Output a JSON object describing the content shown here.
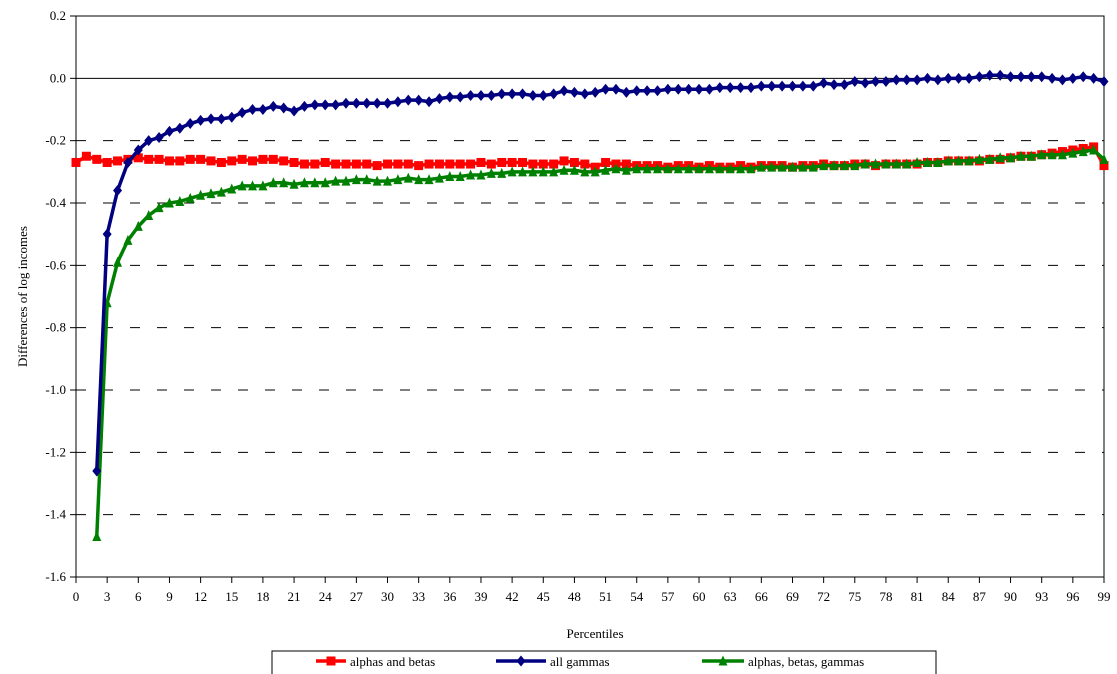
{
  "chart_data": {
    "type": "line",
    "title": "",
    "xlabel": "Percentiles",
    "ylabel": "Differences of log incomes",
    "xlim": [
      0,
      99
    ],
    "ylim": [
      -1.6,
      0.2
    ],
    "y_ticks": [
      "0.2",
      "0.0",
      "-0.2",
      "-0.4",
      "-0.6",
      "-0.8",
      "-1.0",
      "-1.2",
      "-1.4",
      "-1.6"
    ],
    "x_ticks": [
      "0",
      "3",
      "6",
      "9",
      "12",
      "15",
      "18",
      "21",
      "24",
      "27",
      "30",
      "33",
      "36",
      "39",
      "42",
      "45",
      "48",
      "51",
      "54",
      "57",
      "60",
      "63",
      "66",
      "69",
      "72",
      "75",
      "78",
      "81",
      "84",
      "87",
      "90",
      "93",
      "96",
      "99"
    ],
    "grid": "horizontal dashed",
    "legend_position": "bottom",
    "series": [
      {
        "name": "alphas and betas",
        "color": "#ff0000",
        "marker": "square",
        "points": [
          [
            0,
            -0.27
          ],
          [
            1,
            -0.25
          ],
          [
            2,
            -0.26
          ],
          [
            3,
            -0.27
          ],
          [
            4,
            -0.265
          ],
          [
            5,
            -0.26
          ],
          [
            6,
            -0.255
          ],
          [
            7,
            -0.26
          ],
          [
            8,
            -0.26
          ],
          [
            9,
            -0.265
          ],
          [
            10,
            -0.265
          ],
          [
            11,
            -0.26
          ],
          [
            12,
            -0.26
          ],
          [
            13,
            -0.265
          ],
          [
            14,
            -0.27
          ],
          [
            15,
            -0.265
          ],
          [
            16,
            -0.26
          ],
          [
            17,
            -0.265
          ],
          [
            18,
            -0.26
          ],
          [
            19,
            -0.26
          ],
          [
            20,
            -0.265
          ],
          [
            21,
            -0.27
          ],
          [
            22,
            -0.275
          ],
          [
            23,
            -0.275
          ],
          [
            24,
            -0.27
          ],
          [
            25,
            -0.275
          ],
          [
            26,
            -0.275
          ],
          [
            27,
            -0.275
          ],
          [
            28,
            -0.275
          ],
          [
            29,
            -0.28
          ],
          [
            30,
            -0.275
          ],
          [
            31,
            -0.275
          ],
          [
            32,
            -0.275
          ],
          [
            33,
            -0.28
          ],
          [
            34,
            -0.275
          ],
          [
            35,
            -0.275
          ],
          [
            36,
            -0.275
          ],
          [
            37,
            -0.275
          ],
          [
            38,
            -0.275
          ],
          [
            39,
            -0.27
          ],
          [
            40,
            -0.275
          ],
          [
            41,
            -0.27
          ],
          [
            42,
            -0.27
          ],
          [
            43,
            -0.27
          ],
          [
            44,
            -0.275
          ],
          [
            45,
            -0.275
          ],
          [
            46,
            -0.275
          ],
          [
            47,
            -0.265
          ],
          [
            48,
            -0.27
          ],
          [
            49,
            -0.275
          ],
          [
            50,
            -0.285
          ],
          [
            51,
            -0.27
          ],
          [
            52,
            -0.275
          ],
          [
            53,
            -0.275
          ],
          [
            54,
            -0.28
          ],
          [
            55,
            -0.28
          ],
          [
            56,
            -0.28
          ],
          [
            57,
            -0.285
          ],
          [
            58,
            -0.28
          ],
          [
            59,
            -0.28
          ],
          [
            60,
            -0.285
          ],
          [
            61,
            -0.28
          ],
          [
            62,
            -0.285
          ],
          [
            63,
            -0.285
          ],
          [
            64,
            -0.28
          ],
          [
            65,
            -0.285
          ],
          [
            66,
            -0.28
          ],
          [
            67,
            -0.28
          ],
          [
            68,
            -0.28
          ],
          [
            69,
            -0.285
          ],
          [
            70,
            -0.28
          ],
          [
            71,
            -0.28
          ],
          [
            72,
            -0.275
          ],
          [
            73,
            -0.28
          ],
          [
            74,
            -0.28
          ],
          [
            75,
            -0.275
          ],
          [
            76,
            -0.275
          ],
          [
            77,
            -0.28
          ],
          [
            78,
            -0.275
          ],
          [
            79,
            -0.275
          ],
          [
            80,
            -0.275
          ],
          [
            81,
            -0.275
          ],
          [
            82,
            -0.27
          ],
          [
            83,
            -0.27
          ],
          [
            84,
            -0.265
          ],
          [
            85,
            -0.265
          ],
          [
            86,
            -0.265
          ],
          [
            87,
            -0.265
          ],
          [
            88,
            -0.26
          ],
          [
            89,
            -0.26
          ],
          [
            90,
            -0.255
          ],
          [
            91,
            -0.25
          ],
          [
            92,
            -0.25
          ],
          [
            93,
            -0.245
          ],
          [
            94,
            -0.24
          ],
          [
            95,
            -0.235
          ],
          [
            96,
            -0.23
          ],
          [
            97,
            -0.225
          ],
          [
            98,
            -0.22
          ],
          [
            99,
            -0.28
          ]
        ]
      },
      {
        "name": "all gammas",
        "color": "#000080",
        "marker": "diamond",
        "points": [
          [
            2,
            -1.26
          ],
          [
            3,
            -0.5
          ],
          [
            4,
            -0.36
          ],
          [
            5,
            -0.27
          ],
          [
            6,
            -0.23
          ],
          [
            7,
            -0.2
          ],
          [
            8,
            -0.19
          ],
          [
            9,
            -0.17
          ],
          [
            10,
            -0.16
          ],
          [
            11,
            -0.145
          ],
          [
            12,
            -0.135
          ],
          [
            13,
            -0.13
          ],
          [
            14,
            -0.13
          ],
          [
            15,
            -0.125
          ],
          [
            16,
            -0.11
          ],
          [
            17,
            -0.1
          ],
          [
            18,
            -0.1
          ],
          [
            19,
            -0.09
          ],
          [
            20,
            -0.095
          ],
          [
            21,
            -0.105
          ],
          [
            22,
            -0.09
          ],
          [
            23,
            -0.085
          ],
          [
            24,
            -0.085
          ],
          [
            25,
            -0.085
          ],
          [
            26,
            -0.08
          ],
          [
            27,
            -0.08
          ],
          [
            28,
            -0.08
          ],
          [
            29,
            -0.08
          ],
          [
            30,
            -0.08
          ],
          [
            31,
            -0.075
          ],
          [
            32,
            -0.07
          ],
          [
            33,
            -0.07
          ],
          [
            34,
            -0.075
          ],
          [
            35,
            -0.065
          ],
          [
            36,
            -0.06
          ],
          [
            37,
            -0.06
          ],
          [
            38,
            -0.055
          ],
          [
            39,
            -0.055
          ],
          [
            40,
            -0.055
          ],
          [
            41,
            -0.05
          ],
          [
            42,
            -0.05
          ],
          [
            43,
            -0.05
          ],
          [
            44,
            -0.055
          ],
          [
            45,
            -0.055
          ],
          [
            46,
            -0.05
          ],
          [
            47,
            -0.04
          ],
          [
            48,
            -0.045
          ],
          [
            49,
            -0.05
          ],
          [
            50,
            -0.045
          ],
          [
            51,
            -0.035
          ],
          [
            52,
            -0.035
          ],
          [
            53,
            -0.045
          ],
          [
            54,
            -0.04
          ],
          [
            55,
            -0.04
          ],
          [
            56,
            -0.04
          ],
          [
            57,
            -0.035
          ],
          [
            58,
            -0.035
          ],
          [
            59,
            -0.035
          ],
          [
            60,
            -0.035
          ],
          [
            61,
            -0.035
          ],
          [
            62,
            -0.03
          ],
          [
            63,
            -0.03
          ],
          [
            64,
            -0.03
          ],
          [
            65,
            -0.03
          ],
          [
            66,
            -0.025
          ],
          [
            67,
            -0.025
          ],
          [
            68,
            -0.025
          ],
          [
            69,
            -0.025
          ],
          [
            70,
            -0.025
          ],
          [
            71,
            -0.025
          ],
          [
            72,
            -0.015
          ],
          [
            73,
            -0.02
          ],
          [
            74,
            -0.02
          ],
          [
            75,
            -0.01
          ],
          [
            76,
            -0.015
          ],
          [
            77,
            -0.01
          ],
          [
            78,
            -0.01
          ],
          [
            79,
            -0.005
          ],
          [
            80,
            -0.005
          ],
          [
            81,
            -0.005
          ],
          [
            82,
            0
          ],
          [
            83,
            -0.005
          ],
          [
            84,
            0
          ],
          [
            85,
            0
          ],
          [
            86,
            0
          ],
          [
            87,
            0.005
          ],
          [
            88,
            0.01
          ],
          [
            89,
            0.01
          ],
          [
            90,
            0.005
          ],
          [
            91,
            0.005
          ],
          [
            92,
            0.005
          ],
          [
            93,
            0.005
          ],
          [
            94,
            0
          ],
          [
            95,
            -0.005
          ],
          [
            96,
            0
          ],
          [
            97,
            0.005
          ],
          [
            98,
            0
          ],
          [
            99,
            -0.01
          ]
        ]
      },
      {
        "name": "alphas, betas, gammas",
        "color": "#008000",
        "marker": "triangle",
        "points": [
          [
            2,
            -1.47
          ],
          [
            3,
            -0.72
          ],
          [
            4,
            -0.59
          ],
          [
            5,
            -0.52
          ],
          [
            6,
            -0.475
          ],
          [
            7,
            -0.44
          ],
          [
            8,
            -0.415
          ],
          [
            9,
            -0.4
          ],
          [
            10,
            -0.395
          ],
          [
            11,
            -0.385
          ],
          [
            12,
            -0.375
          ],
          [
            13,
            -0.37
          ],
          [
            14,
            -0.365
          ],
          [
            15,
            -0.355
          ],
          [
            16,
            -0.345
          ],
          [
            17,
            -0.345
          ],
          [
            18,
            -0.345
          ],
          [
            19,
            -0.335
          ],
          [
            20,
            -0.335
          ],
          [
            21,
            -0.34
          ],
          [
            22,
            -0.335
          ],
          [
            23,
            -0.335
          ],
          [
            24,
            -0.335
          ],
          [
            25,
            -0.33
          ],
          [
            26,
            -0.33
          ],
          [
            27,
            -0.325
          ],
          [
            28,
            -0.325
          ],
          [
            29,
            -0.33
          ],
          [
            30,
            -0.33
          ],
          [
            31,
            -0.325
          ],
          [
            32,
            -0.32
          ],
          [
            33,
            -0.325
          ],
          [
            34,
            -0.325
          ],
          [
            35,
            -0.32
          ],
          [
            36,
            -0.315
          ],
          [
            37,
            -0.315
          ],
          [
            38,
            -0.31
          ],
          [
            39,
            -0.31
          ],
          [
            40,
            -0.305
          ],
          [
            41,
            -0.305
          ],
          [
            42,
            -0.3
          ],
          [
            43,
            -0.3
          ],
          [
            44,
            -0.3
          ],
          [
            45,
            -0.3
          ],
          [
            46,
            -0.3
          ],
          [
            47,
            -0.295
          ],
          [
            48,
            -0.295
          ],
          [
            49,
            -0.3
          ],
          [
            50,
            -0.3
          ],
          [
            51,
            -0.295
          ],
          [
            52,
            -0.29
          ],
          [
            53,
            -0.295
          ],
          [
            54,
            -0.29
          ],
          [
            55,
            -0.29
          ],
          [
            56,
            -0.29
          ],
          [
            57,
            -0.29
          ],
          [
            58,
            -0.29
          ],
          [
            59,
            -0.29
          ],
          [
            60,
            -0.29
          ],
          [
            61,
            -0.29
          ],
          [
            62,
            -0.29
          ],
          [
            63,
            -0.29
          ],
          [
            64,
            -0.29
          ],
          [
            65,
            -0.29
          ],
          [
            66,
            -0.285
          ],
          [
            67,
            -0.285
          ],
          [
            68,
            -0.285
          ],
          [
            69,
            -0.285
          ],
          [
            70,
            -0.285
          ],
          [
            71,
            -0.285
          ],
          [
            72,
            -0.28
          ],
          [
            73,
            -0.28
          ],
          [
            74,
            -0.28
          ],
          [
            75,
            -0.28
          ],
          [
            76,
            -0.275
          ],
          [
            77,
            -0.275
          ],
          [
            78,
            -0.275
          ],
          [
            79,
            -0.275
          ],
          [
            80,
            -0.275
          ],
          [
            81,
            -0.27
          ],
          [
            82,
            -0.27
          ],
          [
            83,
            -0.27
          ],
          [
            84,
            -0.265
          ],
          [
            85,
            -0.265
          ],
          [
            86,
            -0.265
          ],
          [
            87,
            -0.26
          ],
          [
            88,
            -0.26
          ],
          [
            89,
            -0.255
          ],
          [
            90,
            -0.255
          ],
          [
            91,
            -0.25
          ],
          [
            92,
            -0.25
          ],
          [
            93,
            -0.245
          ],
          [
            94,
            -0.245
          ],
          [
            95,
            -0.245
          ],
          [
            96,
            -0.24
          ],
          [
            97,
            -0.235
          ],
          [
            98,
            -0.23
          ],
          [
            99,
            -0.26
          ]
        ]
      }
    ]
  }
}
